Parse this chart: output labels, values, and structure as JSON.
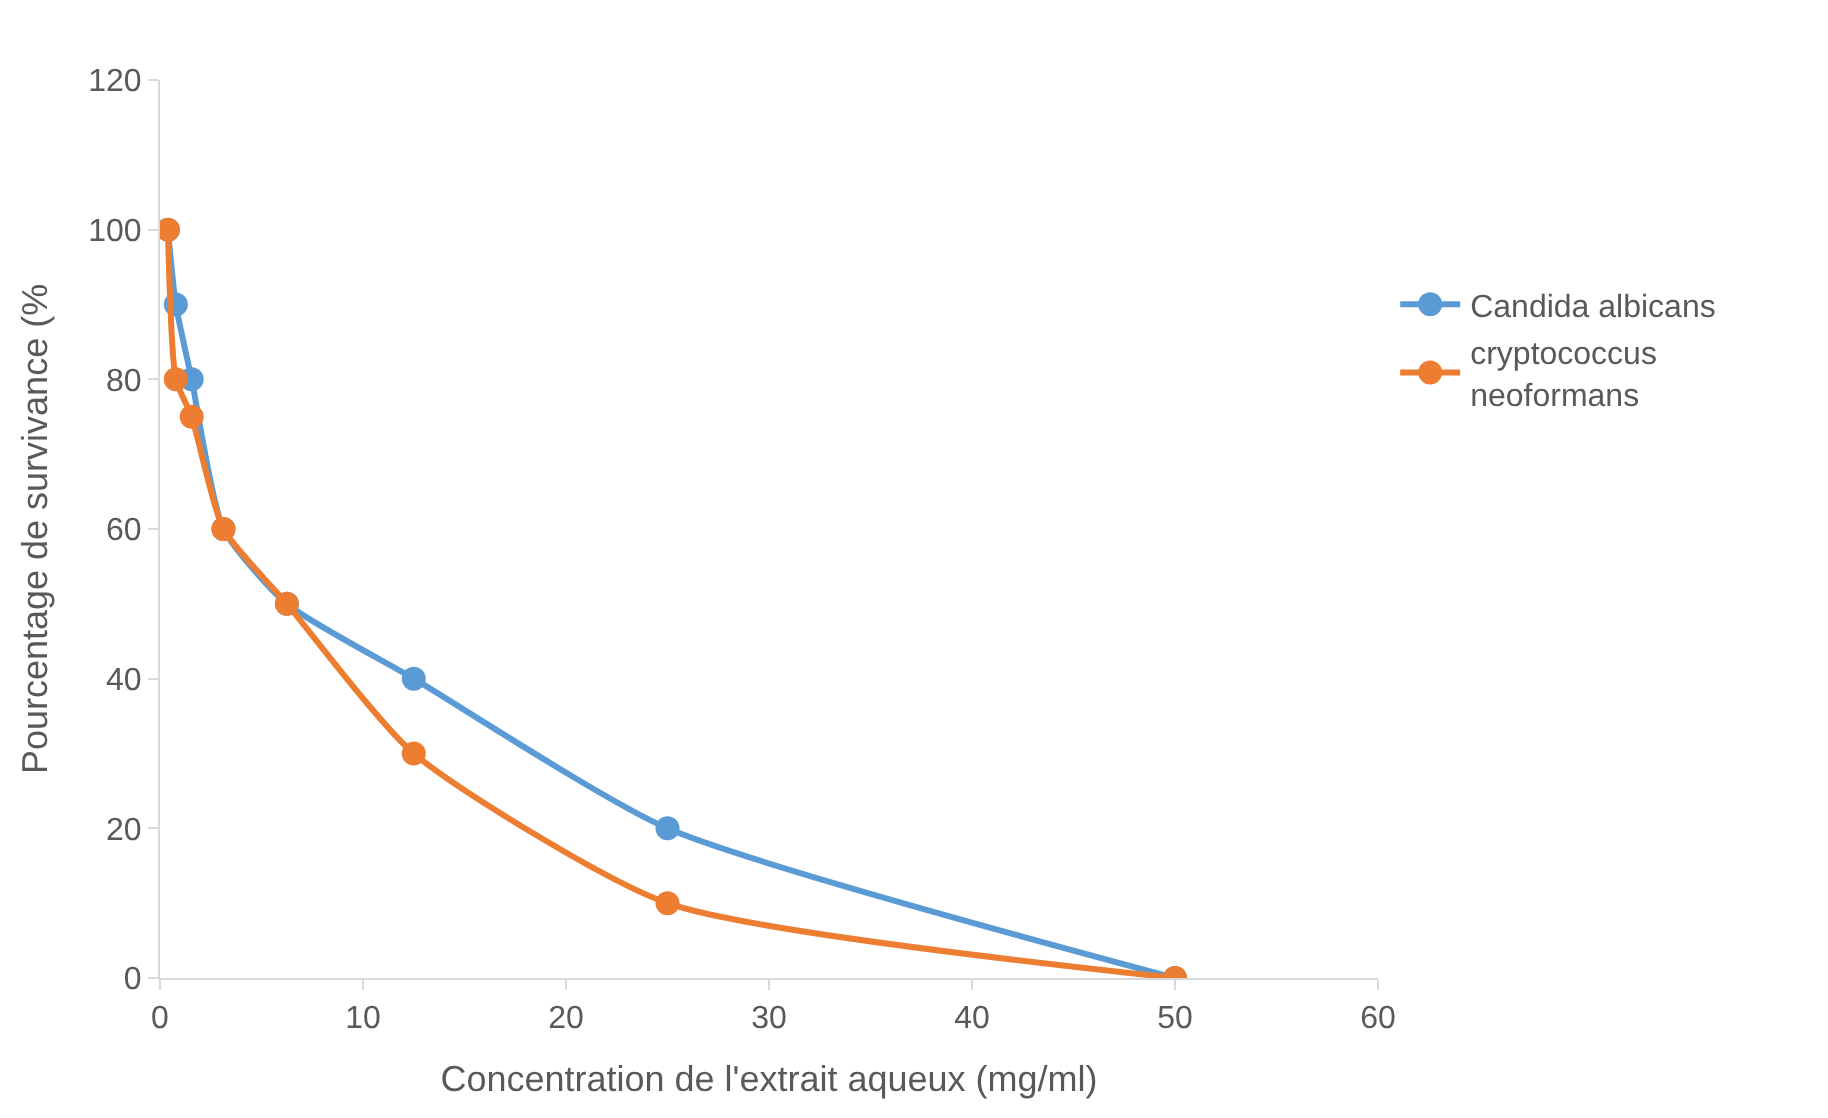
{
  "chart_data": {
    "type": "line",
    "xlabel": "Concentration de l'extrait aqueux (mg/ml)",
    "ylabel": "Pourcentage de survivance (%",
    "xlim": [
      0,
      60
    ],
    "xticks": [
      0,
      10,
      20,
      30,
      40,
      50,
      60
    ],
    "ylim": [
      0,
      120
    ],
    "yticks": [
      0,
      20,
      40,
      60,
      80,
      100,
      120
    ],
    "legend": "right",
    "marker": "circle",
    "line_style": "solid",
    "series": [
      {
        "name": "Candida albicans",
        "color": "#5b9bd5",
        "x": [
          0.39,
          0.78,
          1.56,
          3.125,
          6.25,
          12.5,
          25,
          50
        ],
        "values": [
          100,
          90,
          80,
          60,
          50,
          40,
          20,
          0
        ]
      },
      {
        "name": "cryptococcus neoformans",
        "color": "#ed7d31",
        "x": [
          0.39,
          0.78,
          1.56,
          3.125,
          6.25,
          12.5,
          25,
          50
        ],
        "values": [
          100,
          80,
          75,
          60,
          50,
          30,
          10,
          0
        ]
      }
    ]
  }
}
